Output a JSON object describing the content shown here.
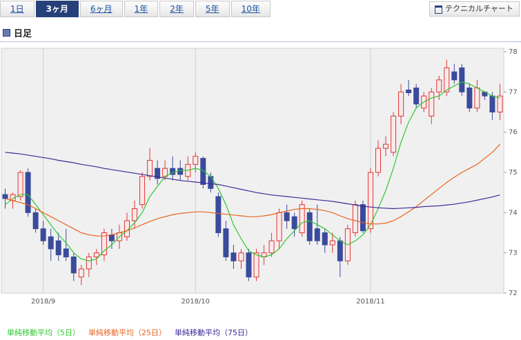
{
  "tabs": [
    "1日",
    "3ヶ月",
    "6ヶ月",
    "1年",
    "2年",
    "5年",
    "10年"
  ],
  "active_tab": 1,
  "button": "テクニカルチャート",
  "section_title": "日足",
  "chart_data": {
    "type": "candlestick",
    "categories": [
      null,
      null,
      null,
      null,
      null,
      "2018/9",
      null,
      null,
      null,
      null,
      null,
      null,
      null,
      null,
      null,
      null,
      null,
      null,
      null,
      null,
      null,
      null,
      null,
      null,
      null,
      "2018/10",
      null,
      null,
      null,
      null,
      null,
      null,
      null,
      null,
      null,
      null,
      null,
      null,
      null,
      null,
      null,
      null,
      null,
      null,
      null,
      null,
      null,
      null,
      "2018/11",
      null,
      null,
      null,
      null,
      null,
      null,
      null,
      null,
      null,
      null,
      null,
      null,
      null,
      null,
      null,
      null,
      null
    ],
    "open": [
      74.45,
      74.3,
      74.4,
      75.0,
      74.0,
      73.6,
      73.4,
      73.3,
      73.1,
      72.9,
      72.4,
      72.6,
      72.9,
      72.95,
      73.45,
      73.3,
      73.4,
      73.8,
      74.2,
      74.9,
      75.1,
      74.9,
      75.1,
      75.1,
      74.9,
      75.2,
      75.35,
      74.9,
      74.4,
      73.6,
      73.0,
      72.8,
      73.0,
      72.4,
      72.9,
      73.0,
      73.3,
      74.0,
      73.9,
      73.5,
      74.0,
      73.6,
      73.5,
      73.2,
      73.3,
      72.8,
      73.5,
      74.2,
      73.6,
      75.0,
      75.6,
      75.5,
      76.4,
      77.05,
      77.1,
      76.6,
      76.4,
      77.0,
      77.0,
      77.5,
      77.6,
      77.1,
      76.6,
      77.0,
      76.9,
      76.5
    ],
    "high": [
      74.6,
      74.5,
      75.05,
      75.1,
      74.1,
      73.8,
      73.6,
      73.5,
      73.6,
      73.0,
      72.7,
      73.0,
      73.1,
      73.6,
      73.6,
      73.7,
      74.0,
      74.3,
      75.0,
      75.6,
      75.3,
      75.3,
      75.4,
      75.3,
      75.4,
      75.5,
      75.4,
      75.0,
      74.5,
      73.8,
      73.2,
      73.1,
      73.1,
      73.1,
      73.2,
      73.5,
      74.1,
      74.2,
      74.0,
      74.3,
      74.1,
      74.2,
      73.6,
      73.5,
      73.4,
      73.7,
      74.3,
      74.3,
      75.1,
      75.8,
      75.9,
      76.5,
      77.2,
      77.3,
      77.2,
      77.0,
      77.1,
      77.4,
      77.8,
      77.7,
      77.7,
      77.2,
      77.3,
      77.0,
      77.0,
      77.2
    ],
    "low": [
      74.1,
      74.1,
      74.3,
      73.9,
      73.5,
      73.2,
      72.8,
      72.8,
      72.8,
      72.3,
      72.2,
      72.4,
      72.7,
      72.8,
      73.1,
      73.1,
      73.3,
      73.6,
      74.1,
      74.8,
      74.7,
      74.8,
      74.8,
      74.8,
      74.8,
      75.0,
      74.6,
      74.5,
      73.4,
      72.8,
      72.6,
      72.6,
      72.3,
      72.3,
      72.7,
      72.9,
      73.1,
      73.6,
      73.4,
      73.4,
      73.2,
      73.2,
      73.0,
      73.0,
      72.4,
      72.7,
      73.4,
      73.5,
      73.5,
      74.9,
      75.4,
      75.4,
      76.2,
      76.9,
      76.6,
      76.5,
      76.2,
      76.8,
      76.9,
      77.2,
      76.9,
      76.5,
      76.5,
      76.8,
      76.3,
      76.3
    ],
    "close": [
      74.35,
      74.45,
      75.0,
      74.0,
      73.6,
      73.3,
      73.1,
      72.95,
      72.9,
      72.5,
      72.6,
      72.9,
      73.0,
      73.5,
      73.3,
      73.5,
      73.8,
      74.1,
      74.9,
      75.3,
      74.85,
      75.1,
      74.95,
      74.95,
      75.2,
      75.4,
      74.7,
      74.6,
      73.5,
      72.9,
      72.8,
      73.0,
      72.4,
      73.0,
      73.0,
      73.3,
      74.0,
      73.8,
      73.6,
      74.2,
      73.3,
      73.3,
      73.2,
      73.3,
      72.8,
      73.6,
      74.2,
      73.55,
      75.0,
      75.6,
      75.7,
      76.4,
      77.0,
      76.98,
      76.7,
      76.9,
      77.0,
      77.3,
      77.6,
      77.3,
      77.0,
      76.6,
      77.1,
      76.9,
      76.5,
      76.9
    ],
    "up_color": "#e03434",
    "down_color": "#3a4a9c",
    "series": [
      {
        "name": "単純移動平均（5日）",
        "color": "#2ec82e",
        "values": [
          74.2,
          74.35,
          74.45,
          74.45,
          74.2,
          73.95,
          73.7,
          73.45,
          73.25,
          73.0,
          72.85,
          72.8,
          72.85,
          73.05,
          73.2,
          73.4,
          73.55,
          73.75,
          74.0,
          74.4,
          74.65,
          74.9,
          75.0,
          75.05,
          75.05,
          75.1,
          75.05,
          74.9,
          74.6,
          74.2,
          73.7,
          73.35,
          73.05,
          72.95,
          72.9,
          72.95,
          73.1,
          73.35,
          73.55,
          73.75,
          73.8,
          73.7,
          73.6,
          73.45,
          73.3,
          73.2,
          73.3,
          73.45,
          73.7,
          74.1,
          74.55,
          75.1,
          75.75,
          76.25,
          76.6,
          76.75,
          76.85,
          76.9,
          77.05,
          77.15,
          77.25,
          77.2,
          77.1,
          77.0,
          76.9,
          76.85
        ]
      },
      {
        "name": "単純移動平均（25日）",
        "color": "#e8641e",
        "values": [
          74.35,
          74.3,
          74.25,
          74.2,
          74.1,
          74.0,
          73.9,
          73.8,
          73.7,
          73.6,
          73.5,
          73.45,
          73.42,
          73.42,
          73.45,
          73.5,
          73.55,
          73.62,
          73.7,
          73.78,
          73.85,
          73.9,
          73.95,
          73.98,
          74.0,
          74.02,
          74.02,
          74.0,
          73.98,
          73.96,
          73.94,
          73.92,
          73.9,
          73.9,
          73.92,
          73.95,
          74.0,
          74.04,
          74.08,
          74.1,
          74.1,
          74.08,
          74.05,
          74.0,
          73.92,
          73.85,
          73.8,
          73.75,
          73.72,
          73.72,
          73.74,
          73.8,
          73.9,
          74.02,
          74.15,
          74.3,
          74.45,
          74.6,
          74.75,
          74.88,
          75.0,
          75.1,
          75.2,
          75.35,
          75.5,
          75.7
        ]
      },
      {
        "name": "単純移動平均（75日）",
        "color": "#3c2896",
        "values": [
          75.5,
          75.48,
          75.46,
          75.43,
          75.4,
          75.37,
          75.34,
          75.3,
          75.27,
          75.24,
          75.2,
          75.17,
          75.14,
          75.1,
          75.07,
          75.04,
          75.01,
          74.98,
          74.95,
          74.92,
          74.89,
          74.86,
          74.83,
          74.8,
          74.78,
          74.76,
          74.74,
          74.72,
          74.7,
          74.66,
          74.62,
          74.58,
          74.54,
          74.5,
          74.47,
          74.44,
          74.42,
          74.4,
          74.38,
          74.36,
          74.34,
          74.32,
          74.3,
          74.28,
          74.25,
          74.22,
          74.19,
          74.16,
          74.14,
          74.12,
          74.11,
          74.1,
          74.11,
          74.12,
          74.13,
          74.15,
          74.16,
          74.17,
          74.19,
          74.21,
          74.24,
          74.27,
          74.31,
          74.35,
          74.39,
          74.44
        ]
      }
    ],
    "ylim": [
      72,
      78
    ],
    "yticks": [
      72,
      73,
      74,
      75,
      76,
      77,
      78
    ],
    "grid": false
  }
}
